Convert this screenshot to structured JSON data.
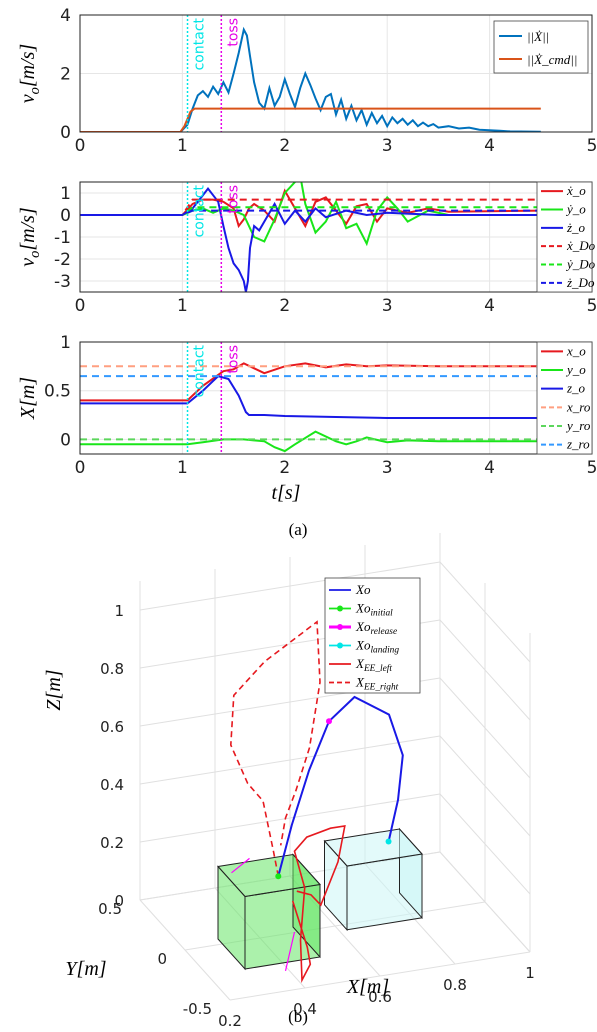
{
  "captions": {
    "a": "(a)",
    "b": "(b)"
  },
  "colors": {
    "contact": "#00e6e6",
    "toss": "#e600e6",
    "grid": "#e6e6e6"
  },
  "events": {
    "contact_label": "contact",
    "toss_label": "toss",
    "contact_t": 1.05,
    "toss_t": 1.38
  },
  "chart_data": [
    {
      "type": "line",
      "ylabel": "v_o[m/s]",
      "xlim": [
        0,
        5
      ],
      "ylim": [
        0,
        4
      ],
      "xticks": [
        "0",
        "1",
        "2",
        "3",
        "4",
        "5"
      ],
      "yticks": [
        "0",
        "2",
        "4"
      ],
      "legend_placement": "top-right",
      "grid": true,
      "series": [
        {
          "name": "||Ẋ||",
          "color": "#0072bd",
          "dash": false,
          "x": [
            0,
            0.98,
            1.05,
            1.1,
            1.15,
            1.2,
            1.25,
            1.3,
            1.35,
            1.4,
            1.45,
            1.5,
            1.55,
            1.6,
            1.63,
            1.66,
            1.7,
            1.75,
            1.8,
            1.85,
            1.9,
            1.95,
            2.0,
            2.05,
            2.1,
            2.15,
            2.2,
            2.25,
            2.3,
            2.35,
            2.4,
            2.45,
            2.5,
            2.55,
            2.6,
            2.65,
            2.7,
            2.75,
            2.8,
            2.85,
            2.9,
            2.95,
            3.0,
            3.05,
            3.1,
            3.15,
            3.2,
            3.25,
            3.3,
            3.35,
            3.4,
            3.45,
            3.5,
            3.6,
            3.7,
            3.8,
            3.9,
            4.0,
            4.1,
            4.2,
            4.5
          ],
          "y": [
            0,
            0,
            0.25,
            0.8,
            1.25,
            1.4,
            1.2,
            1.55,
            1.3,
            1.7,
            1.35,
            2.0,
            2.7,
            3.5,
            3.3,
            2.6,
            1.7,
            1.0,
            0.8,
            1.5,
            0.9,
            1.2,
            1.8,
            1.3,
            0.85,
            1.5,
            2.0,
            1.6,
            1.15,
            0.75,
            1.2,
            1.3,
            0.6,
            1.1,
            0.45,
            0.9,
            0.4,
            0.75,
            0.25,
            0.65,
            0.3,
            0.55,
            0.2,
            0.5,
            0.3,
            0.45,
            0.25,
            0.4,
            0.2,
            0.32,
            0.2,
            0.27,
            0.15,
            0.2,
            0.12,
            0.15,
            0.08,
            0.06,
            0.04,
            0.02,
            0.01
          ]
        },
        {
          "name": "||Ẋ_cmd||",
          "color": "#d95319",
          "dash": false,
          "x": [
            0,
            0.98,
            1.02,
            1.08,
            1.12,
            4.5
          ],
          "y": [
            0,
            0,
            0.2,
            0.7,
            0.8,
            0.8
          ]
        }
      ]
    },
    {
      "type": "line",
      "ylabel": "v_o[m/s]",
      "xlim": [
        0,
        5
      ],
      "ylim": [
        -3.5,
        1.5
      ],
      "xticks": [
        "0",
        "1",
        "2",
        "3",
        "4",
        "5"
      ],
      "yticks": [
        "-3",
        "-2",
        "-1",
        "0",
        "1"
      ],
      "legend_placement": "right",
      "grid": true,
      "series": [
        {
          "name": "ẋ_o",
          "color": "#e6191f",
          "dash": false,
          "x": [
            0,
            1.0,
            1.1,
            1.2,
            1.3,
            1.4,
            1.5,
            1.55,
            1.6,
            1.65,
            1.7,
            1.8,
            1.9,
            2.0,
            2.1,
            2.2,
            2.3,
            2.4,
            2.5,
            2.6,
            2.7,
            2.8,
            2.9,
            3.0,
            3.2,
            3.4,
            3.6,
            4.5
          ],
          "y": [
            0,
            0,
            0.5,
            0.7,
            0.7,
            0.6,
            0.3,
            -0.5,
            -0.2,
            0.3,
            0.5,
            0.2,
            -0.3,
            1.1,
            0.3,
            -0.5,
            0.6,
            0.8,
            0.2,
            -0.4,
            0.4,
            0.5,
            -0.3,
            0.3,
            0.1,
            0.3,
            0.15,
            0.2
          ]
        },
        {
          "name": "ẏ_o",
          "color": "#19e619",
          "dash": false,
          "x": [
            0,
            1.0,
            1.1,
            1.2,
            1.3,
            1.4,
            1.5,
            1.6,
            1.7,
            1.8,
            1.9,
            2.0,
            2.1,
            2.15,
            2.2,
            2.3,
            2.4,
            2.5,
            2.6,
            2.7,
            2.8,
            2.9,
            3.0,
            3.1,
            3.2,
            3.4,
            3.6,
            4.5
          ],
          "y": [
            0,
            0,
            0.2,
            0.3,
            0.1,
            0.3,
            0.2,
            0.0,
            -1.0,
            -1.2,
            -0.2,
            1.0,
            1.5,
            1.8,
            0.5,
            -0.8,
            -0.3,
            0.6,
            -0.6,
            -0.4,
            -1.3,
            0.2,
            0.8,
            0.3,
            -0.3,
            0.2,
            0.0,
            0.0
          ]
        },
        {
          "name": "ż_o",
          "color": "#1919e6",
          "dash": false,
          "x": [
            0,
            1.0,
            1.1,
            1.2,
            1.25,
            1.3,
            1.35,
            1.4,
            1.45,
            1.5,
            1.55,
            1.6,
            1.62,
            1.64,
            1.66,
            1.7,
            1.75,
            1.8,
            1.9,
            2.0,
            2.1,
            2.2,
            2.3,
            2.4,
            2.6,
            2.8,
            3.0,
            3.5,
            4.5
          ],
          "y": [
            0,
            0,
            0.3,
            0.9,
            1.2,
            0.9,
            0.6,
            -0.5,
            -1.5,
            -2.2,
            -2.5,
            -3.0,
            -3.5,
            -3.0,
            -1.5,
            -0.5,
            -0.7,
            -0.3,
            0.5,
            -0.4,
            0.2,
            -0.3,
            0.3,
            -0.1,
            0.2,
            0.0,
            0.1,
            0.0,
            0.0
          ]
        },
        {
          "name": "ẋ_Do",
          "color": "#e6191f",
          "dash": true,
          "x": [
            0,
            1.0,
            1.1,
            4.5
          ],
          "y": [
            0,
            0,
            0.7,
            0.7
          ]
        },
        {
          "name": "ẏ_Do",
          "color": "#19e619",
          "dash": true,
          "x": [
            0,
            1.0,
            1.1,
            4.5
          ],
          "y": [
            0,
            0,
            0.35,
            0.35
          ]
        },
        {
          "name": "ż_Do",
          "color": "#1919e6",
          "dash": true,
          "x": [
            0,
            1.0,
            1.1,
            4.5
          ],
          "y": [
            0,
            0,
            0.2,
            0.2
          ]
        }
      ]
    },
    {
      "type": "line",
      "xlabel": "t[s]",
      "ylabel": "X[m]",
      "xlim": [
        0,
        5
      ],
      "ylim": [
        -0.15,
        1.0
      ],
      "xticks": [
        "0",
        "1",
        "2",
        "3",
        "4",
        "5"
      ],
      "yticks": [
        "0",
        "0.5",
        "1"
      ],
      "legend_placement": "right",
      "grid": true,
      "series": [
        {
          "name": "x_o",
          "color": "#e6191f",
          "dash": false,
          "x": [
            0,
            1.05,
            1.2,
            1.4,
            1.5,
            1.6,
            1.7,
            1.8,
            2.0,
            2.2,
            2.4,
            2.6,
            2.8,
            3.0,
            3.5,
            4.5
          ],
          "y": [
            0.4,
            0.4,
            0.55,
            0.7,
            0.72,
            0.78,
            0.73,
            0.68,
            0.75,
            0.78,
            0.74,
            0.77,
            0.75,
            0.76,
            0.75,
            0.75
          ]
        },
        {
          "name": "y_o",
          "color": "#19e619",
          "dash": false,
          "x": [
            0,
            1.05,
            1.2,
            1.4,
            1.6,
            1.8,
            1.9,
            2.0,
            2.1,
            2.3,
            2.5,
            2.6,
            2.7,
            2.8,
            3.0,
            3.2,
            3.5,
            4.5
          ],
          "y": [
            -0.05,
            -0.05,
            -0.03,
            0.0,
            0.0,
            -0.02,
            -0.08,
            -0.12,
            -0.05,
            0.08,
            -0.02,
            -0.05,
            -0.02,
            0.02,
            -0.03,
            -0.01,
            -0.02,
            -0.02
          ]
        },
        {
          "name": "z_o",
          "color": "#1919e6",
          "dash": false,
          "x": [
            0,
            1.05,
            1.2,
            1.35,
            1.45,
            1.55,
            1.62,
            1.65,
            1.8,
            2.0,
            2.5,
            3.0,
            4.5
          ],
          "y": [
            0.37,
            0.37,
            0.5,
            0.65,
            0.62,
            0.45,
            0.28,
            0.25,
            0.25,
            0.24,
            0.23,
            0.22,
            0.22
          ]
        },
        {
          "name": "x_ro",
          "color": "#ff9f80",
          "dash": true,
          "x": [
            0,
            4.5
          ],
          "y": [
            0.75,
            0.75
          ]
        },
        {
          "name": "y_ro",
          "color": "#5cd65c",
          "dash": true,
          "x": [
            0,
            4.5
          ],
          "y": [
            0.0,
            0.0
          ]
        },
        {
          "name": "z_ro",
          "color": "#3399ff",
          "dash": true,
          "x": [
            0,
            4.5
          ],
          "y": [
            0.65,
            0.65
          ]
        }
      ]
    }
  ],
  "plot3d": {
    "xlabel": "X[m]",
    "ylabel": "Y[m]",
    "zlabel": "Z[m]",
    "xticks": [
      "0.2",
      "0.4",
      "0.6",
      "0.8",
      "1"
    ],
    "yticks": [
      "-0.5",
      "0",
      "0.5"
    ],
    "zticks": [
      "0",
      "0.2",
      "0.4",
      "0.6",
      "0.8",
      "1"
    ],
    "legend": [
      {
        "name": "Xo",
        "color": "#1919e6",
        "style": "solid"
      },
      {
        "name": "Xo_initial",
        "color": "#19e619",
        "style": "dot"
      },
      {
        "name": "Xo_release",
        "color": "#ff00ff",
        "style": "dot"
      },
      {
        "name": "Xo_landing",
        "color": "#00e6e6",
        "style": "dot"
      },
      {
        "name": "X_EE_left",
        "color": "#e6191f",
        "style": "solid"
      },
      {
        "name": "X_EE_right",
        "color": "#e6191f",
        "style": "dashed"
      }
    ],
    "box_colors": {
      "pick": "#66e666",
      "place": "#ccf5f5"
    }
  }
}
